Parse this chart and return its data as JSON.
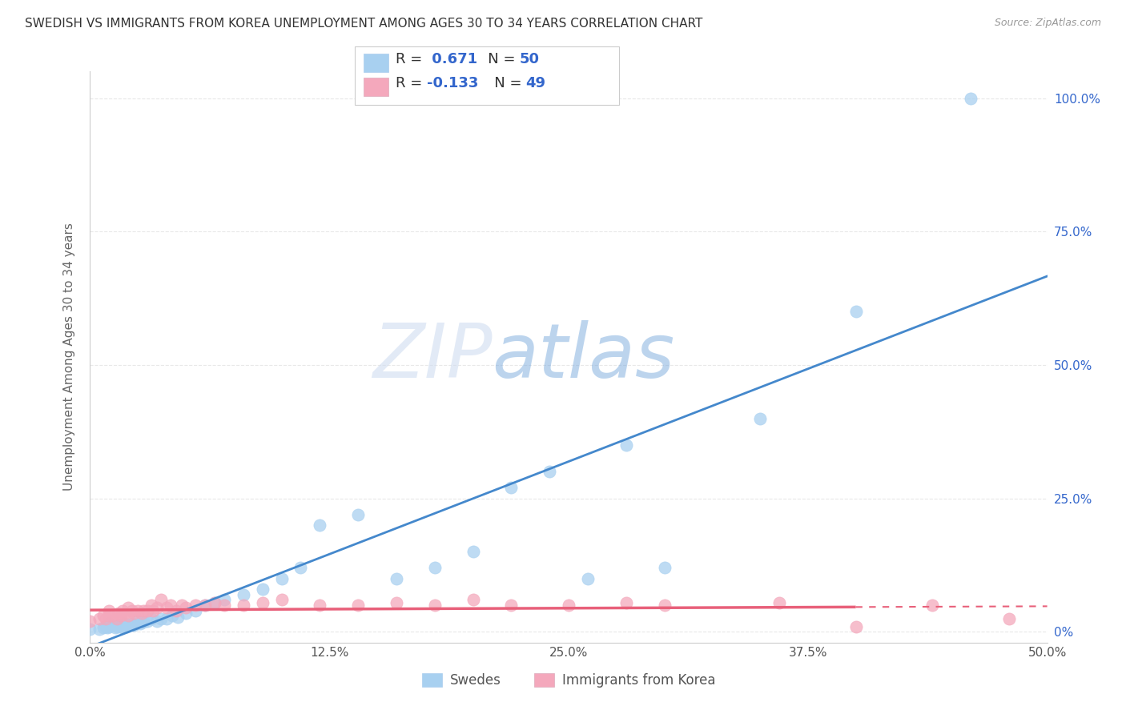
{
  "title": "SWEDISH VS IMMIGRANTS FROM KOREA UNEMPLOYMENT AMONG AGES 30 TO 34 YEARS CORRELATION CHART",
  "source": "Source: ZipAtlas.com",
  "ylabel": "Unemployment Among Ages 30 to 34 years",
  "xlim": [
    0.0,
    0.5
  ],
  "ylim": [
    -0.02,
    1.05
  ],
  "xtick_labels": [
    "0.0%",
    "12.5%",
    "25.0%",
    "37.5%",
    "50.0%"
  ],
  "xtick_vals": [
    0.0,
    0.125,
    0.25,
    0.375,
    0.5
  ],
  "ytick_labels_right": [
    "0%",
    "25.0%",
    "50.0%",
    "75.0%",
    "100.0%"
  ],
  "ytick_vals": [
    0.0,
    0.25,
    0.5,
    0.75,
    1.0
  ],
  "swedes_color": "#a8d0f0",
  "korea_color": "#f4a8bc",
  "swedes_label": "Swedes",
  "korea_label": "Immigrants from Korea",
  "R_swedes": 0.671,
  "N_swedes": 50,
  "R_korea": -0.133,
  "N_korea": 49,
  "legend_R_color": "#3366cc",
  "watermark_zip": "ZIP",
  "watermark_atlas": "atlas",
  "background_color": "#ffffff",
  "grid_color": "#e8e8e8",
  "swedes_line_color": "#4488cc",
  "korea_line_color": "#e8607a",
  "swedes_x": [
    0.0,
    0.005,
    0.007,
    0.008,
    0.009,
    0.01,
    0.01,
    0.012,
    0.013,
    0.014,
    0.015,
    0.016,
    0.017,
    0.018,
    0.019,
    0.02,
    0.022,
    0.023,
    0.025,
    0.026,
    0.028,
    0.03,
    0.032,
    0.035,
    0.037,
    0.04,
    0.043,
    0.046,
    0.05,
    0.055,
    0.06,
    0.065,
    0.07,
    0.08,
    0.09,
    0.1,
    0.11,
    0.12,
    0.14,
    0.16,
    0.18,
    0.2,
    0.22,
    0.24,
    0.26,
    0.28,
    0.3,
    0.35,
    0.4,
    0.46
  ],
  "swedes_y": [
    0.005,
    0.005,
    0.008,
    0.01,
    0.008,
    0.01,
    0.015,
    0.012,
    0.008,
    0.01,
    0.012,
    0.01,
    0.008,
    0.015,
    0.01,
    0.012,
    0.015,
    0.012,
    0.02,
    0.015,
    0.018,
    0.02,
    0.025,
    0.02,
    0.025,
    0.025,
    0.03,
    0.028,
    0.035,
    0.04,
    0.05,
    0.055,
    0.06,
    0.07,
    0.08,
    0.1,
    0.12,
    0.2,
    0.22,
    0.1,
    0.12,
    0.15,
    0.27,
    0.3,
    0.1,
    0.35,
    0.12,
    0.4,
    0.6,
    1.0
  ],
  "korea_x": [
    0.0,
    0.005,
    0.007,
    0.008,
    0.01,
    0.01,
    0.012,
    0.014,
    0.015,
    0.016,
    0.017,
    0.018,
    0.02,
    0.02,
    0.022,
    0.023,
    0.025,
    0.027,
    0.028,
    0.03,
    0.032,
    0.033,
    0.035,
    0.037,
    0.04,
    0.042,
    0.045,
    0.048,
    0.05,
    0.055,
    0.06,
    0.065,
    0.07,
    0.08,
    0.09,
    0.1,
    0.12,
    0.14,
    0.16,
    0.18,
    0.2,
    0.22,
    0.25,
    0.28,
    0.3,
    0.36,
    0.4,
    0.44,
    0.48
  ],
  "korea_y": [
    0.02,
    0.025,
    0.03,
    0.025,
    0.03,
    0.04,
    0.03,
    0.025,
    0.035,
    0.03,
    0.04,
    0.035,
    0.03,
    0.045,
    0.04,
    0.035,
    0.04,
    0.035,
    0.04,
    0.04,
    0.05,
    0.04,
    0.045,
    0.06,
    0.045,
    0.05,
    0.04,
    0.05,
    0.045,
    0.05,
    0.05,
    0.055,
    0.05,
    0.05,
    0.055,
    0.06,
    0.05,
    0.05,
    0.055,
    0.05,
    0.06,
    0.05,
    0.05,
    0.055,
    0.05,
    0.055,
    0.01,
    0.05,
    0.025
  ]
}
